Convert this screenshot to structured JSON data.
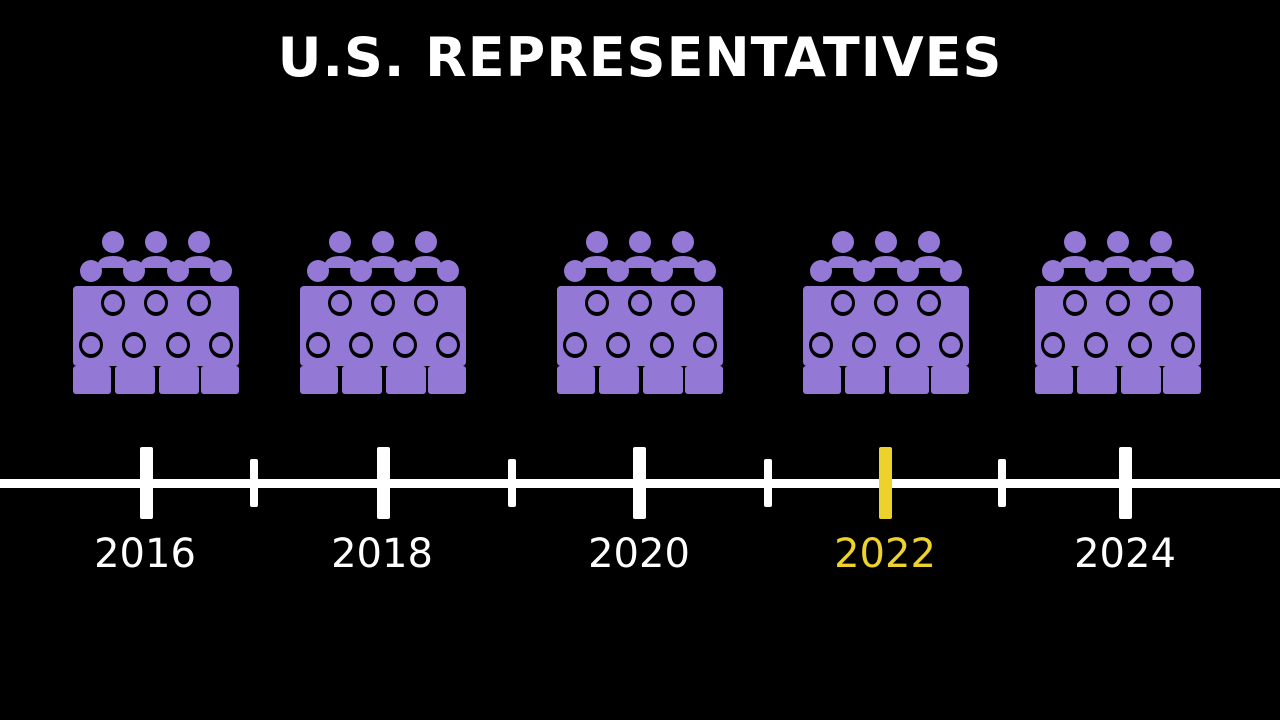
{
  "title": "U.S. REPRESENTATIVES",
  "colors": {
    "background": "#000000",
    "icon_fill": "#9478d6",
    "timeline": "#ffffff",
    "highlight": "#ecd22a"
  },
  "icon_semantic": "audience-group-icon",
  "timeline": {
    "years": [
      {
        "label": "2016",
        "highlighted": false
      },
      {
        "label": "2018",
        "highlighted": false
      },
      {
        "label": "2020",
        "highlighted": false
      },
      {
        "label": "2022",
        "highlighted": true
      },
      {
        "label": "2024",
        "highlighted": false
      }
    ],
    "minor_ticks": 4
  }
}
